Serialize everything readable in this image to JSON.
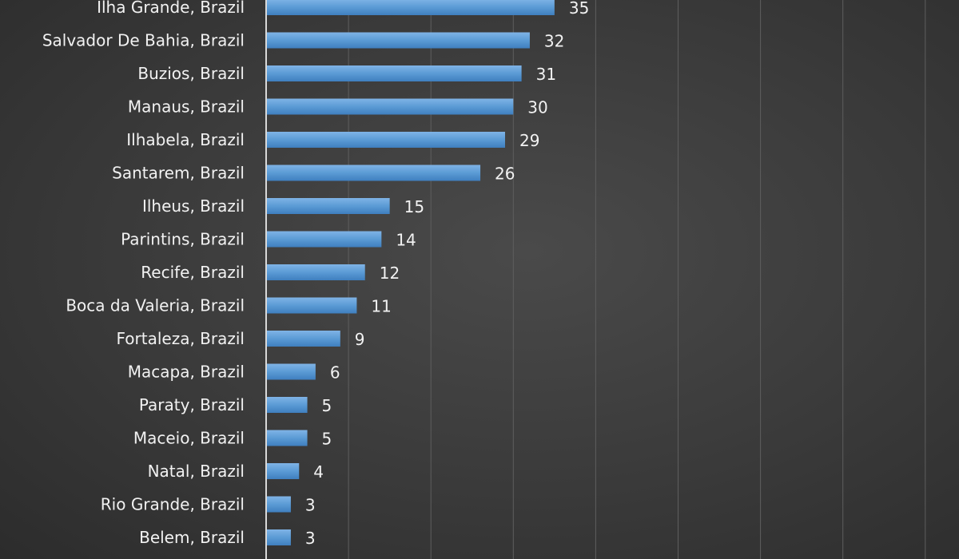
{
  "chart_data": {
    "type": "bar",
    "orientation": "horizontal",
    "title": "",
    "xlabel": "",
    "ylabel": "",
    "categories": [
      "Ilha Grande, Brazil",
      "Salvador De Bahia, Brazil",
      "Buzios, Brazil",
      "Manaus, Brazil",
      "Ilhabela, Brazil",
      "Santarem, Brazil",
      "Ilheus, Brazil",
      "Parintins, Brazil",
      "Recife, Brazil",
      "Boca da Valeria, Brazil",
      "Fortaleza, Brazil",
      "Macapa, Brazil",
      "Paraty, Brazil",
      "Maceio, Brazil",
      "Natal, Brazil",
      "Rio Grande, Brazil",
      "Belem, Brazil"
    ],
    "values": [
      35,
      32,
      31,
      30,
      29,
      26,
      15,
      14,
      12,
      11,
      9,
      6,
      5,
      5,
      4,
      3,
      3
    ],
    "xlim": [
      0,
      80
    ],
    "grid": true,
    "data_labels": true,
    "bar_color": "#5b9bd5",
    "background_color": "#3b3b3b",
    "text_color": "#f2f2f2"
  }
}
